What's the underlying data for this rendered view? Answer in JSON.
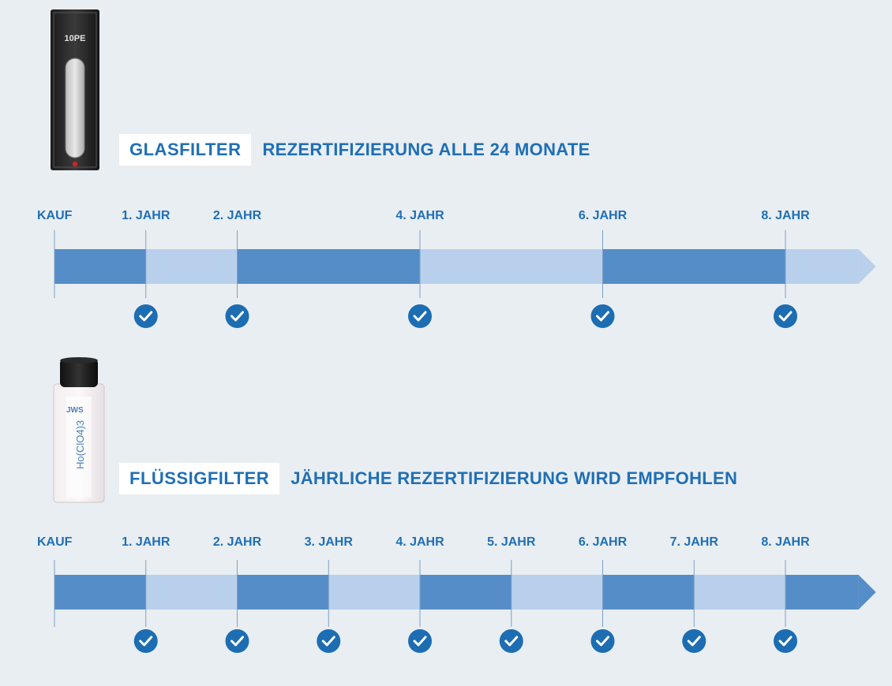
{
  "colors": {
    "background": "#e9eef2",
    "dark_segment": "#558dc8",
    "light_segment": "#b9d0ec",
    "accent": "#1f6fb5",
    "check": "#1d6db2"
  },
  "glasfilter": {
    "label": "GLASFILTER",
    "description": "REZERTIFIZIERUNG ALLE 24 MONATE",
    "cuvette_text": "10PE",
    "timeline": {
      "markers": [
        "KAUF",
        "1. JAHR",
        "2. JAHR",
        "4. JAHR",
        "6. JAHR",
        "8. JAHR"
      ],
      "marker_years": [
        0,
        1,
        2,
        4,
        6,
        8
      ],
      "check_years": [
        1,
        2,
        4,
        6,
        8
      ],
      "segments": [
        {
          "from": 0,
          "to": 1,
          "shade": "dark"
        },
        {
          "from": 1,
          "to": 2,
          "shade": "light"
        },
        {
          "from": 2,
          "to": 4,
          "shade": "dark"
        },
        {
          "from": 4,
          "to": 6,
          "shade": "light"
        },
        {
          "from": 6,
          "to": 8,
          "shade": "dark"
        },
        {
          "from": 8,
          "to": 8.8,
          "shade": "light"
        }
      ]
    }
  },
  "fluessigfilter": {
    "label": "FLÜSSIGFILTER",
    "description": "JÄHRLICHE REZERTIFIZIERUNG WIRD EMPFOHLEN",
    "cuvette_text": "Ho(ClO4)3",
    "cuvette_logo": "JWS",
    "timeline": {
      "markers": [
        "KAUF",
        "1. JAHR",
        "2. JAHR",
        "3. JAHR",
        "4. JAHR",
        "5. JAHR",
        "6. JAHR",
        "7. JAHR",
        "8. JAHR"
      ],
      "marker_years": [
        0,
        1,
        2,
        3,
        4,
        5,
        6,
        7,
        8
      ],
      "check_years": [
        1,
        2,
        3,
        4,
        5,
        6,
        7,
        8
      ],
      "segments": [
        {
          "from": 0,
          "to": 1,
          "shade": "dark"
        },
        {
          "from": 1,
          "to": 2,
          "shade": "light"
        },
        {
          "from": 2,
          "to": 3,
          "shade": "dark"
        },
        {
          "from": 3,
          "to": 4,
          "shade": "light"
        },
        {
          "from": 4,
          "to": 5,
          "shade": "dark"
        },
        {
          "from": 5,
          "to": 6,
          "shade": "light"
        },
        {
          "from": 6,
          "to": 7,
          "shade": "dark"
        },
        {
          "from": 7,
          "to": 8,
          "shade": "light"
        },
        {
          "from": 8,
          "to": 8.8,
          "shade": "dark"
        }
      ]
    }
  }
}
